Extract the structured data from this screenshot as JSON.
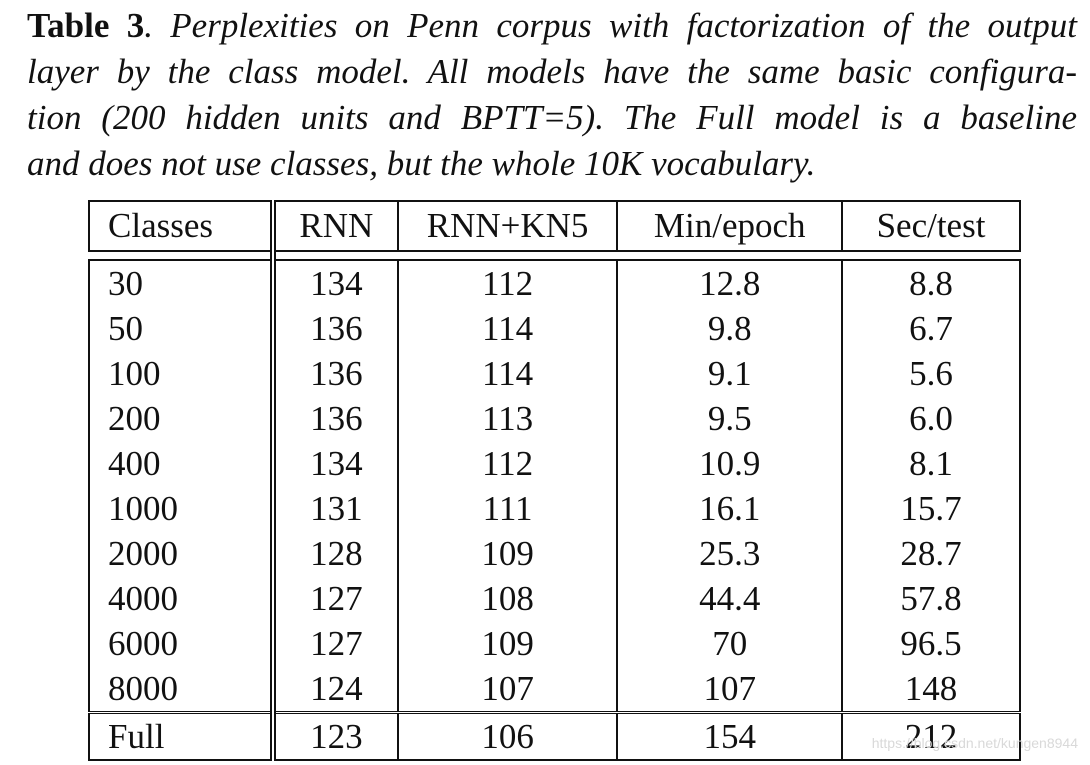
{
  "caption": {
    "label": "Table 3",
    "line1_rest": ". Perplexities on Penn corpus with factorization of the output",
    "line2": "layer by the class model. All models have the same basic configura-",
    "line3": "tion (200 hidden units and BPTT=5). The Full model is a baseline",
    "line4": "and does not use classes, but the whole 10K vocabulary."
  },
  "table": {
    "headers": [
      "Classes",
      "RNN",
      "RNN+KN5",
      "Min/epoch",
      "Sec/test"
    ],
    "rows": [
      [
        "30",
        "134",
        "112",
        "12.8",
        "8.8"
      ],
      [
        "50",
        "136",
        "114",
        "9.8",
        "6.7"
      ],
      [
        "100",
        "136",
        "114",
        "9.1",
        "5.6"
      ],
      [
        "200",
        "136",
        "113",
        "9.5",
        "6.0"
      ],
      [
        "400",
        "134",
        "112",
        "10.9",
        "8.1"
      ],
      [
        "1000",
        "131",
        "111",
        "16.1",
        "15.7"
      ],
      [
        "2000",
        "128",
        "109",
        "25.3",
        "28.7"
      ],
      [
        "4000",
        "127",
        "108",
        "44.4",
        "57.8"
      ],
      [
        "6000",
        "127",
        "109",
        "70",
        "96.5"
      ],
      [
        "8000",
        "124",
        "107",
        "107",
        "148"
      ]
    ],
    "full_row": [
      "Full",
      "123",
      "106",
      "154",
      "212"
    ]
  },
  "watermark": "https://blog.csdn.net/kungen8944"
}
